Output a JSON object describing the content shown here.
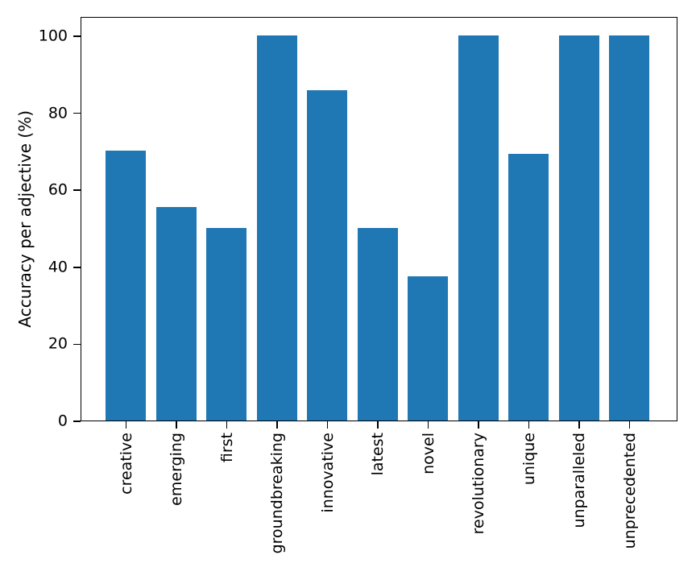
{
  "chart_data": {
    "type": "bar",
    "title": "",
    "categories": [
      "creative",
      "emerging",
      "first",
      "groundbreaking",
      "innovative",
      "latest",
      "novel",
      "revolutionary",
      "unique",
      "unparalleled",
      "unprecedented"
    ],
    "values": [
      70,
      55.5,
      50,
      100,
      85.7,
      50,
      37.5,
      100,
      69.2,
      100,
      100
    ],
    "xlabel": "",
    "ylabel": "Accuracy per adjective (%)",
    "ylim": [
      0,
      105
    ],
    "yticks": [
      0,
      20,
      40,
      60,
      80,
      100
    ],
    "bar_color": "#1f77b4",
    "axis_color": "#000000",
    "grid": false,
    "legend_position": "none"
  }
}
